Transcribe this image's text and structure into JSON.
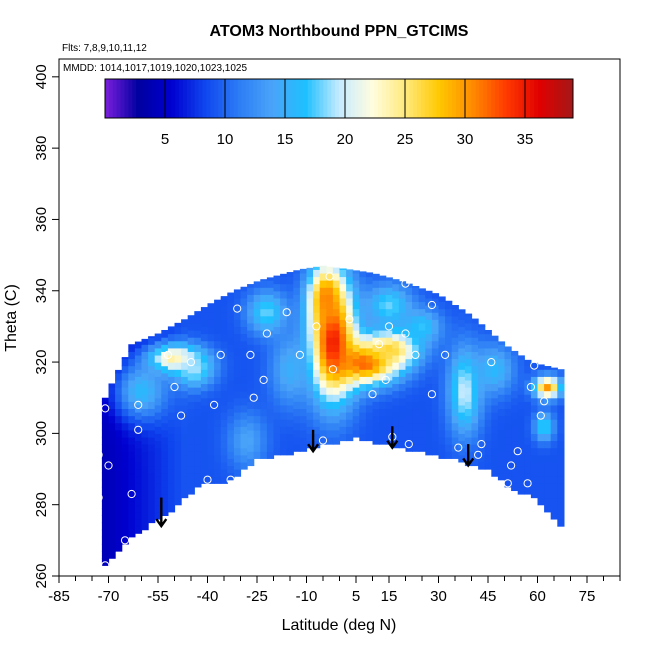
{
  "chart_data": {
    "type": "heatmap",
    "title": "ATOM3 Northbound PPN_GTCIMS",
    "annotations": {
      "flights": "Flts: 7,8,9,10,11,12",
      "dates": "MMDD: 1014,1017,1019,1020,1023,1025"
    },
    "xlabel": "Latitude (deg N)",
    "ylabel": "Theta (C)",
    "xlim": [
      -85,
      85
    ],
    "ylim": [
      260,
      405
    ],
    "x_ticks": [
      -85,
      -70,
      -55,
      -40,
      -25,
      -10,
      5,
      15,
      30,
      45,
      60,
      75
    ],
    "x_minor_step": 5,
    "y_ticks": [
      260,
      280,
      300,
      320,
      340,
      360,
      380,
      400
    ],
    "colorbar": {
      "range": [
        0,
        39
      ],
      "ticks": [
        5,
        10,
        15,
        20,
        25,
        30,
        35
      ],
      "colors": [
        "#7b1fdc",
        "#0000a0",
        "#0000d0",
        "#0f47ef",
        "#2c7cf5",
        "#4aa4f8",
        "#1ec0ff",
        "#c6eaff",
        "#fffde0",
        "#ffe97a",
        "#ffc800",
        "#ff8a00",
        "#ff3a00",
        "#e00000",
        "#a41818"
      ]
    },
    "grid": false,
    "domain": {
      "top": [
        [
          -72,
          308
        ],
        [
          -68,
          316
        ],
        [
          -63,
          325
        ],
        [
          -55,
          328
        ],
        [
          -47,
          332
        ],
        [
          -40,
          336
        ],
        [
          -32,
          340
        ],
        [
          -24,
          343
        ],
        [
          -12,
          346
        ],
        [
          -5,
          347
        ],
        [
          3,
          346
        ],
        [
          10,
          345
        ],
        [
          18,
          343
        ],
        [
          30,
          339
        ],
        [
          40,
          333
        ],
        [
          50,
          325
        ],
        [
          58,
          320
        ],
        [
          67,
          318
        ]
      ],
      "bottom": [
        [
          -72,
          262
        ],
        [
          -68,
          267
        ],
        [
          -62,
          272
        ],
        [
          -52,
          278
        ],
        [
          -42,
          286
        ],
        [
          -35,
          286
        ],
        [
          -25,
          293
        ],
        [
          -14,
          295
        ],
        [
          -5,
          297
        ],
        [
          5,
          299
        ],
        [
          15,
          297
        ],
        [
          25,
          295
        ],
        [
          35,
          293
        ],
        [
          45,
          290
        ],
        [
          52,
          285
        ],
        [
          60,
          282
        ],
        [
          67,
          274
        ]
      ]
    },
    "field_hotspots": [
      {
        "x": -2,
        "y": 326,
        "value": 36,
        "rx": 7,
        "ry": 16
      },
      {
        "x": -4,
        "y": 338,
        "value": 31,
        "rx": 5,
        "ry": 9
      },
      {
        "x": 8,
        "y": 320,
        "value": 33,
        "rx": 10,
        "ry": 6
      },
      {
        "x": 16,
        "y": 324,
        "value": 27,
        "rx": 8,
        "ry": 5
      },
      {
        "x": -50,
        "y": 321,
        "value": 26,
        "rx": 8,
        "ry": 4
      },
      {
        "x": -44,
        "y": 318,
        "value": 19,
        "rx": 6,
        "ry": 5
      },
      {
        "x": -60,
        "y": 312,
        "value": 16,
        "rx": 8,
        "ry": 8
      },
      {
        "x": -22,
        "y": 334,
        "value": 18,
        "rx": 6,
        "ry": 6
      },
      {
        "x": 15,
        "y": 336,
        "value": 18,
        "rx": 7,
        "ry": 6
      },
      {
        "x": 38,
        "y": 312,
        "value": 20,
        "rx": 5,
        "ry": 12
      },
      {
        "x": 25,
        "y": 330,
        "value": 17,
        "rx": 6,
        "ry": 5
      },
      {
        "x": 47,
        "y": 318,
        "value": 16,
        "rx": 6,
        "ry": 7
      },
      {
        "x": 63,
        "y": 313,
        "value": 30,
        "rx": 4,
        "ry": 3
      },
      {
        "x": 62,
        "y": 302,
        "value": 18,
        "rx": 3,
        "ry": 4
      },
      {
        "x": -28,
        "y": 298,
        "value": 14,
        "rx": 6,
        "ry": 8
      },
      {
        "x": -15,
        "y": 318,
        "value": 15,
        "rx": 6,
        "ry": 10
      }
    ],
    "background_value": 9,
    "south_value": 4,
    "sample_points": [
      {
        "x": -71,
        "y": 263
      },
      {
        "x": -65,
        "y": 270
      },
      {
        "x": -73,
        "y": 282
      },
      {
        "x": -63,
        "y": 283
      },
      {
        "x": -73,
        "y": 294
      },
      {
        "x": -70,
        "y": 291
      },
      {
        "x": -61,
        "y": 301
      },
      {
        "x": -71,
        "y": 307
      },
      {
        "x": -61,
        "y": 308
      },
      {
        "x": -50,
        "y": 313
      },
      {
        "x": -48,
        "y": 305
      },
      {
        "x": -38,
        "y": 308
      },
      {
        "x": -40,
        "y": 287
      },
      {
        "x": -33,
        "y": 287
      },
      {
        "x": -45,
        "y": 320
      },
      {
        "x": -52,
        "y": 322
      },
      {
        "x": -36,
        "y": 322
      },
      {
        "x": -27,
        "y": 322
      },
      {
        "x": -23,
        "y": 315
      },
      {
        "x": -22,
        "y": 328
      },
      {
        "x": -26,
        "y": 310
      },
      {
        "x": -12,
        "y": 322
      },
      {
        "x": -7,
        "y": 330
      },
      {
        "x": -2,
        "y": 318
      },
      {
        "x": -5,
        "y": 298
      },
      {
        "x": 3,
        "y": 332
      },
      {
        "x": 12,
        "y": 325
      },
      {
        "x": 15,
        "y": 330
      },
      {
        "x": 10,
        "y": 311
      },
      {
        "x": 14,
        "y": 315
      },
      {
        "x": 20,
        "y": 328
      },
      {
        "x": 23,
        "y": 322
      },
      {
        "x": 16,
        "y": 299
      },
      {
        "x": 21,
        "y": 297
      },
      {
        "x": 28,
        "y": 311
      },
      {
        "x": 28,
        "y": 336
      },
      {
        "x": 36,
        "y": 296
      },
      {
        "x": 42,
        "y": 294
      },
      {
        "x": 43,
        "y": 297
      },
      {
        "x": 46,
        "y": 320
      },
      {
        "x": 51,
        "y": 286
      },
      {
        "x": 54,
        "y": 295
      },
      {
        "x": 57,
        "y": 286
      },
      {
        "x": 52,
        "y": 291
      },
      {
        "x": 58,
        "y": 313
      },
      {
        "x": 61,
        "y": 305
      },
      {
        "x": 62,
        "y": 309
      },
      {
        "x": 59,
        "y": 319
      },
      {
        "x": 32,
        "y": 322
      },
      {
        "x": -16,
        "y": 334
      },
      {
        "x": -3,
        "y": 344
      },
      {
        "x": 20,
        "y": 342
      },
      {
        "x": -31,
        "y": 335
      },
      {
        "x": 37,
        "y": 338
      }
    ],
    "arrows": [
      {
        "x": -54,
        "y_from": 282,
        "y_to": 274
      },
      {
        "x": -8,
        "y_from": 301,
        "y_to": 295
      },
      {
        "x": 16,
        "y_from": 302,
        "y_to": 296
      },
      {
        "x": 39,
        "y_from": 297,
        "y_to": 291
      }
    ]
  }
}
